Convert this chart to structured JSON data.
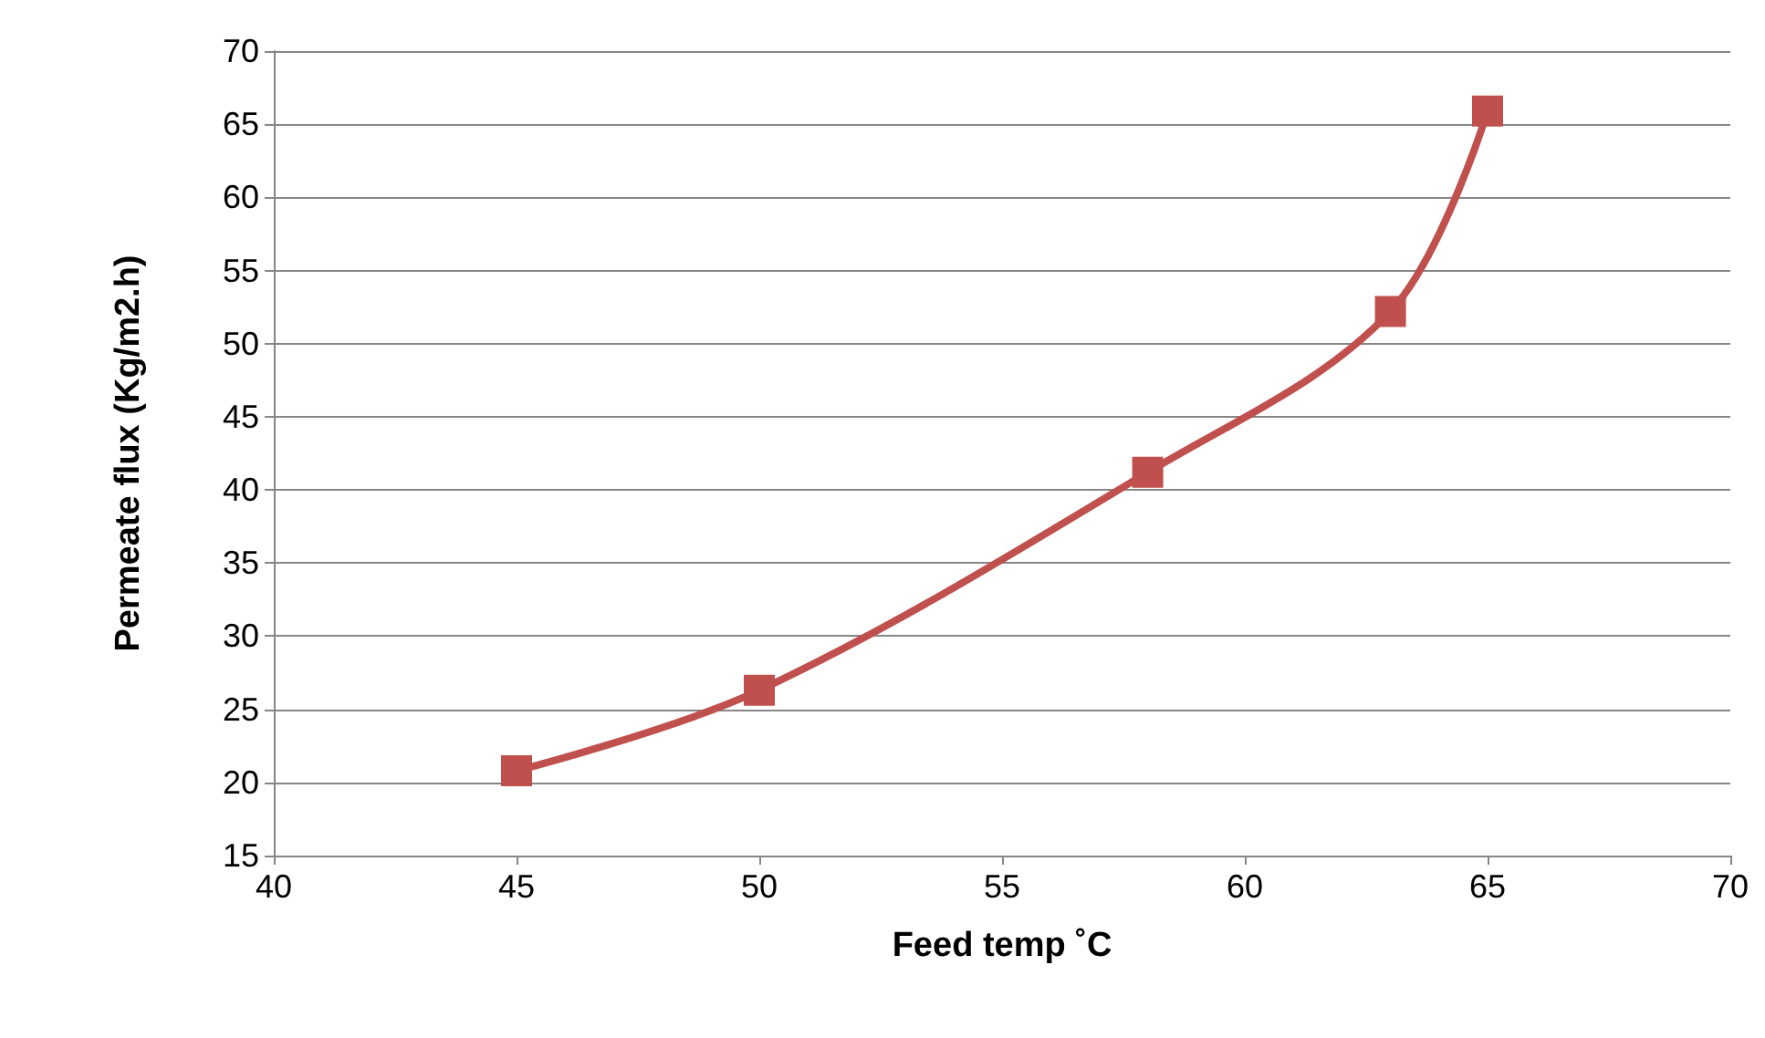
{
  "chart_data": {
    "type": "line",
    "xlabel": "Feed temp ˚C",
    "ylabel": "Permeate flux (Kg/m2.h)",
    "x": [
      45,
      50,
      58,
      63,
      65
    ],
    "series": [
      {
        "color": "#c0504d",
        "values": [
          20.8,
          26.3,
          41.2,
          52.2,
          65.9
        ]
      }
    ],
    "xlim": [
      40,
      70
    ],
    "xticks": [
      40,
      45,
      50,
      55,
      60,
      65,
      70
    ],
    "ylim": [
      15,
      70
    ],
    "yticks": [
      15,
      20,
      25,
      30,
      35,
      40,
      45,
      50,
      55,
      60,
      65,
      70
    ],
    "grid": "y",
    "marker": "square",
    "line_style": "solid"
  }
}
